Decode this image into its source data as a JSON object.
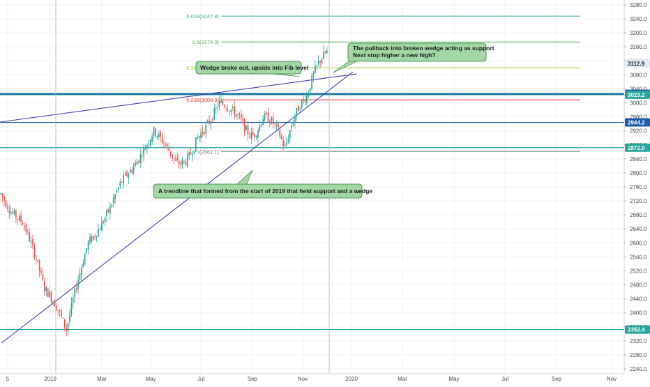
{
  "chart_data": {
    "type": "candlestick",
    "title": "",
    "xlabel": "",
    "ylabel": "",
    "ylim": [
      2220,
      3300
    ],
    "y_ticks": [
      2240,
      2280,
      2320,
      2360,
      2400,
      2440,
      2480,
      2520,
      2560,
      2600,
      2640,
      2680,
      2720,
      2760,
      2800,
      2840,
      2880,
      2920,
      2960,
      3000,
      3040,
      3080,
      3120,
      3160,
      3200,
      3240,
      3280
    ],
    "x_ticks": [
      "5",
      "2019",
      "Mar",
      "May",
      "Jul",
      "Sep",
      "Nov",
      "2020",
      "Mar",
      "May",
      "Jul",
      "Sep",
      "Nov"
    ],
    "grid": true,
    "price_series": {
      "start_x": 0,
      "end_x": 470,
      "anchors": [
        [
          2740,
          2710
        ],
        [
          2660,
          2690
        ],
        [
          2470,
          2500
        ],
        [
          2352,
          2380
        ],
        [
          2600,
          2580
        ],
        [
          2700,
          2740
        ],
        [
          2810,
          2800
        ],
        [
          2920,
          2940
        ],
        [
          2830,
          2760
        ],
        [
          2900,
          2880
        ],
        [
          3000,
          3020
        ],
        [
          2950,
          2830
        ],
        [
          2960,
          3020
        ],
        [
          2870,
          2930
        ],
        [
          3020,
          3080
        ],
        [
          3150,
          3100
        ]
      ]
    },
    "fib_levels": [
      {
        "label": "0.618(3247.8)",
        "value": 3247.8,
        "color": "#3cb371"
      },
      {
        "label": "0.5(3174.0)",
        "value": 3174.0,
        "color": "#4caf50"
      },
      {
        "label": "0.382(3100.2)",
        "value": 3100.2,
        "color": "#9acd32"
      },
      {
        "label": "0.236(3008.9)",
        "value": 3008.9,
        "color": "#e53935"
      },
      {
        "label": "0(2861.1)",
        "value": 2861.1,
        "color": "#808080"
      }
    ],
    "horizontal_lines": [
      {
        "value": 3023.2,
        "color": "#26a69a",
        "width": 1.2
      },
      {
        "value": 3025.9,
        "color": "#1e5aa8",
        "width": 2
      },
      {
        "value": 2944.2,
        "color": "#1e5aa8",
        "width": 1.2
      },
      {
        "value": 2872.0,
        "color": "#26a69a",
        "width": 1.2
      },
      {
        "value": 2352.4,
        "color": "#26a69a",
        "width": 1.2
      }
    ],
    "price_tags": [
      {
        "label": "3112.9",
        "value": 3112.9,
        "color": "#dfe9f5",
        "text_color": "#1a1a1a"
      },
      {
        "label": "3025.9",
        "value": 3025.9,
        "color": "#1e5aa8",
        "text_color": "#ffffff"
      },
      {
        "label": "3023.2",
        "value": 3023.2,
        "color": "#26a69a",
        "text_color": "#ffffff"
      },
      {
        "label": "2944.2",
        "value": 2944.2,
        "color": "#1e5aa8",
        "text_color": "#ffffff"
      },
      {
        "label": "2872.0",
        "value": 2872.0,
        "color": "#26a69a",
        "text_color": "#ffffff"
      },
      {
        "label": "2352.4",
        "value": 2352.4,
        "color": "#26a69a",
        "text_color": "#ffffff"
      }
    ],
    "annotations": [
      {
        "text": [
          "Wedge broke out, upside into Fib level"
        ]
      },
      {
        "text": [
          "The pullback into broken wedge acting as support",
          "Next stop higher a new high?"
        ]
      },
      {
        "text": [
          "A trendline that formed from the start of 2019 that held support and a wedge"
        ]
      }
    ]
  }
}
